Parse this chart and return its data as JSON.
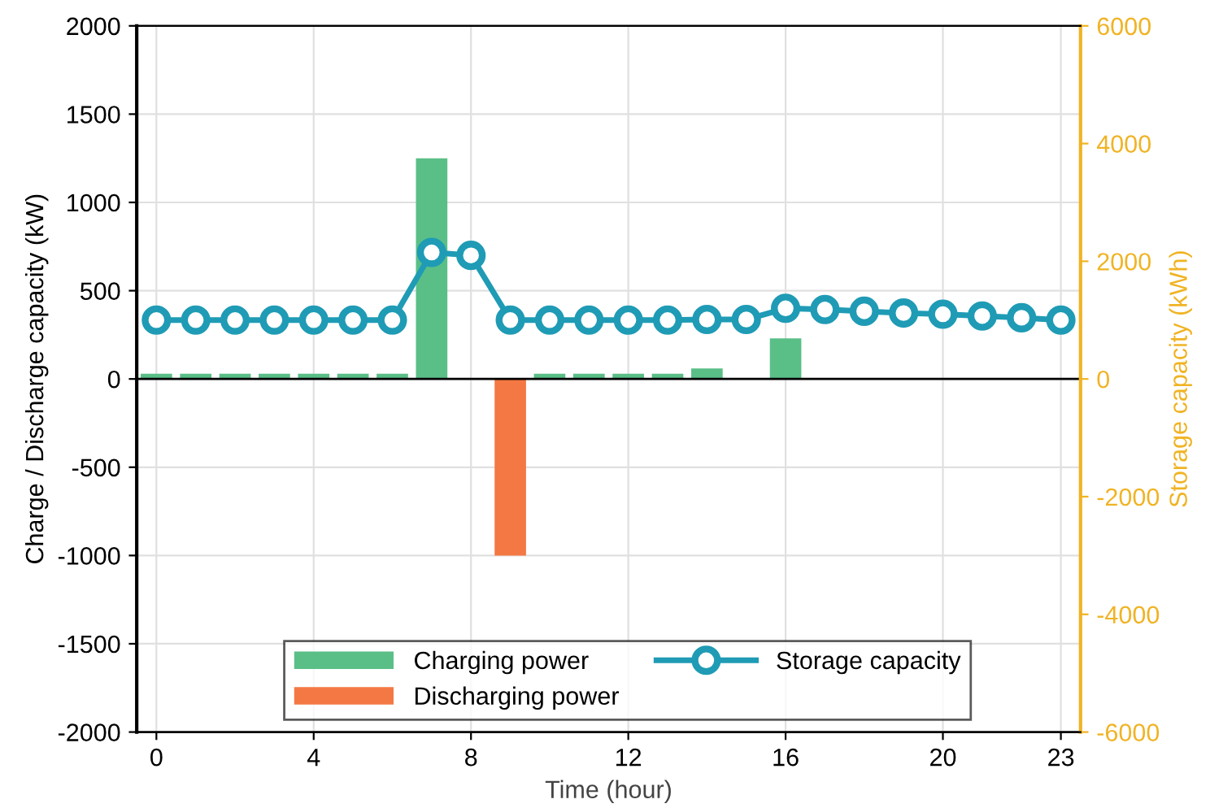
{
  "chart_data": {
    "type": "bar",
    "xlabel": "Time (hour)",
    "ylabel": "Charge / Discharge capacity (kW)",
    "y2label": "Storage capacity (kWh)",
    "x": [
      0,
      1,
      2,
      3,
      4,
      5,
      6,
      7,
      8,
      9,
      10,
      11,
      12,
      13,
      14,
      15,
      16,
      17,
      18,
      19,
      20,
      21,
      22,
      23
    ],
    "xlim": [
      -0.5,
      23.5
    ],
    "xticks": [
      0,
      4,
      8,
      12,
      16,
      20,
      23
    ],
    "ylim": [
      -2000,
      2000
    ],
    "yticks": [
      -2000,
      -1500,
      -1000,
      -500,
      0,
      500,
      1000,
      1500,
      2000
    ],
    "y2lim": [
      -6000,
      6000
    ],
    "y2ticks": [
      -6000,
      -4000,
      -2000,
      0,
      2000,
      4000,
      6000
    ],
    "grid": true,
    "legend": "bottom",
    "series": [
      {
        "name": "Charging power",
        "color": "#5abf87",
        "values": [
          30,
          30,
          30,
          30,
          30,
          30,
          30,
          1250,
          null,
          null,
          30,
          30,
          30,
          30,
          60,
          null,
          230,
          null,
          null,
          null,
          null,
          null,
          null,
          null
        ]
      },
      {
        "name": "Discharging power",
        "color": "#f47843",
        "values": [
          null,
          null,
          null,
          null,
          null,
          null,
          null,
          null,
          null,
          -1000,
          null,
          null,
          null,
          null,
          null,
          null,
          null,
          null,
          null,
          null,
          null,
          null,
          null,
          null
        ]
      },
      {
        "name": "Storage capacity",
        "type": "line",
        "axis": "y2",
        "color": "#1f9bb5",
        "marker": "circle",
        "values": [
          1000,
          1000,
          1000,
          1000,
          1000,
          1000,
          1000,
          2150,
          2100,
          1000,
          1000,
          1000,
          1000,
          1000,
          1010,
          1010,
          1200,
          1180,
          1150,
          1120,
          1100,
          1070,
          1040,
          1000
        ]
      }
    ]
  }
}
